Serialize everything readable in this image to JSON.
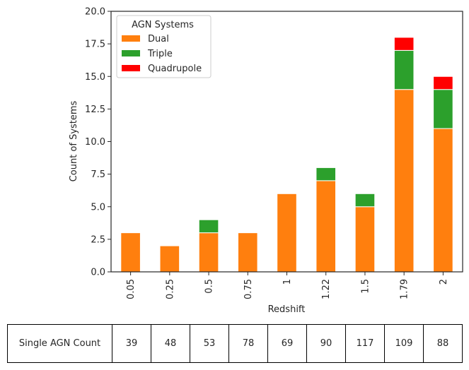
{
  "chart_data": {
    "type": "bar",
    "stacked": true,
    "categories": [
      "0.05",
      "0.25",
      "0.5",
      "0.75",
      "1",
      "1.22",
      "1.5",
      "1.79",
      "2"
    ],
    "series": [
      {
        "name": "Dual",
        "values": [
          3,
          2,
          3,
          3,
          6,
          7,
          5,
          14,
          11
        ],
        "color": "#ff7f0e"
      },
      {
        "name": "Triple",
        "values": [
          0,
          0,
          1,
          0,
          0,
          1,
          1,
          3,
          3
        ],
        "color": "#2ca02c"
      },
      {
        "name": "Quadrupole",
        "values": [
          0,
          0,
          0,
          0,
          0,
          0,
          0,
          1,
          1
        ],
        "color": "#ff0000"
      }
    ],
    "title": "",
    "xlabel": "Redshift",
    "ylabel": "Count of Systems",
    "ylim": [
      0,
      20
    ],
    "yticks": [
      "0.0",
      "2.5",
      "5.0",
      "7.5",
      "10.0",
      "12.5",
      "15.0",
      "17.5",
      "20.0"
    ],
    "legend": {
      "title": "AGN Systems",
      "placement": "top-left"
    },
    "grid": false
  },
  "table": {
    "row_label": "Single AGN Count",
    "values": [
      "39",
      "48",
      "53",
      "78",
      "69",
      "90",
      "117",
      "109",
      "88"
    ]
  }
}
